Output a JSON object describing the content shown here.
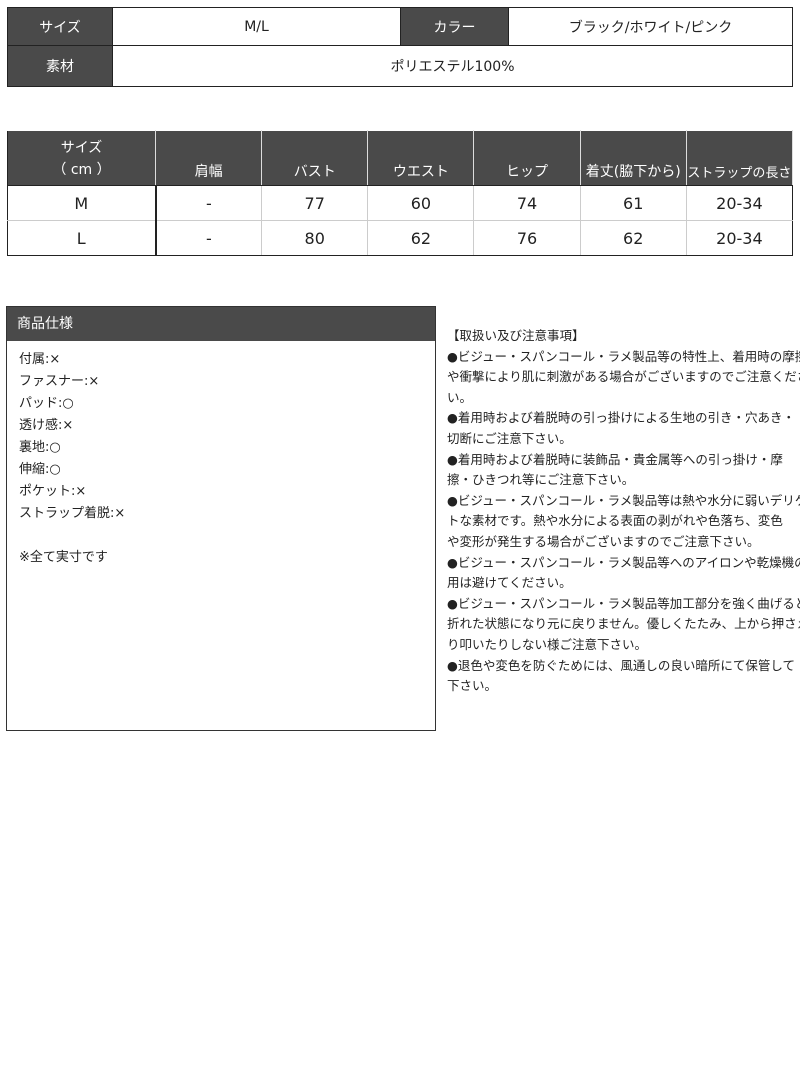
{
  "basic": {
    "size_label": "サイズ",
    "size_value": "M/L",
    "color_label": "カラー",
    "color_value": "ブラック/ホワイト/ピンク",
    "material_label": "素材",
    "material_value": "ポリエステル100%"
  },
  "sizes": {
    "headers": [
      "サイズ\n（ cm ）",
      "肩幅",
      "バスト",
      "ウエスト",
      "ヒップ",
      "着丈(脇下から)",
      "ストラップの長さ"
    ],
    "rows": [
      [
        "M",
        "-",
        "77",
        "60",
        "74",
        "61",
        "20-34"
      ],
      [
        "L",
        "-",
        "80",
        "62",
        "76",
        "62",
        "20-34"
      ]
    ]
  },
  "spec": {
    "title": "商品仕様",
    "items": [
      "付属:×",
      "ファスナー:×",
      "パッド:○",
      "透け感:×",
      "裏地:○",
      "伸縮:○",
      "ポケット:×",
      "ストラップ着脱:×",
      "",
      "※全て実寸です"
    ]
  },
  "notes": {
    "lines": [
      "【取扱い及び注意事項】",
      "●ビジュー・スパンコール・ラメ製品等の特性上、着用時の摩擦",
      "や衝撃により肌に刺激がある場合がございますのでご注意くださ",
      "い。",
      "●着用時および着脱時の引っ掛けによる生地の引き・穴あき・",
      "切断にご注意下さい。",
      "●着用時および着脱時に装飾品・貴金属等への引っ掛け・摩",
      "擦・ひきつれ等にご注意下さい。",
      "●ビジュー・スパンコール・ラメ製品等は熱や水分に弱いデリケー",
      "トな素材です。熱や水分による表面の剥がれや色落ち、変色",
      "や変形が発生する場合がございますのでご注意下さい。",
      "●ビジュー・スパンコール・ラメ製品等へのアイロンや乾燥機の使",
      "用は避けてください。",
      "●ビジュー・スパンコール・ラメ製品等加工部分を強く曲げると",
      "折れた状態になり元に戻りません。優しくたたみ、上から押さえた",
      "り叩いたりしない様ご注意下さい。",
      "●退色や変色を防ぐためには、風通しの良い暗所にて保管して",
      "下さい。"
    ]
  },
  "colors": {
    "header_bg": "#4a4a4a"
  }
}
